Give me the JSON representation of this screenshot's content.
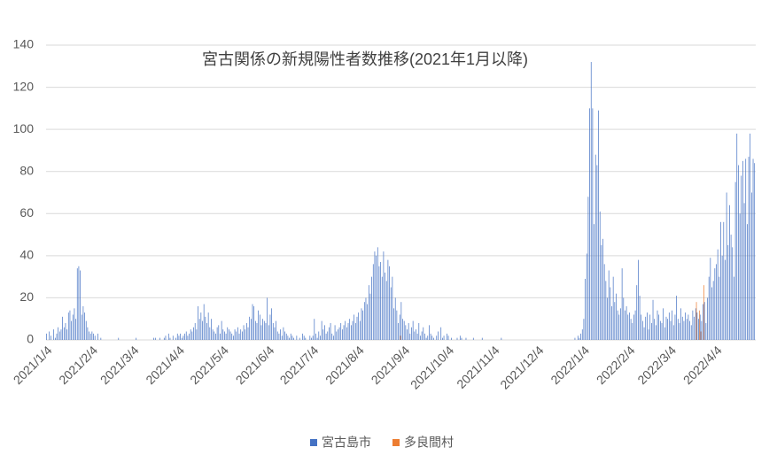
{
  "chart_data": {
    "type": "bar",
    "title": "宮古関係の新規陽性者数推移(2021年1月以降)",
    "ylim": [
      0,
      140
    ],
    "yticks": [
      0,
      20,
      40,
      60,
      80,
      100,
      120,
      140
    ],
    "grid": true,
    "legend": "bottom",
    "categories": [
      "2021/1/4",
      null,
      null,
      null,
      null,
      null,
      null,
      null,
      null,
      null,
      null,
      null,
      null,
      null,
      null,
      null,
      null,
      null,
      null,
      null,
      null,
      null,
      null,
      null,
      null,
      null,
      null,
      null,
      null,
      null,
      null,
      "2021/2/4",
      null,
      null,
      null,
      null,
      null,
      null,
      null,
      null,
      null,
      null,
      null,
      null,
      null,
      null,
      null,
      null,
      null,
      null,
      null,
      null,
      null,
      null,
      null,
      null,
      null,
      null,
      null,
      "2021/3/4",
      null,
      null,
      null,
      null,
      null,
      null,
      null,
      null,
      null,
      null,
      null,
      null,
      null,
      null,
      null,
      null,
      null,
      null,
      null,
      null,
      null,
      null,
      null,
      null,
      null,
      null,
      null,
      null,
      null,
      null,
      "2021/4/4",
      null,
      null,
      null,
      null,
      null,
      null,
      null,
      null,
      null,
      null,
      null,
      null,
      null,
      null,
      null,
      null,
      null,
      null,
      null,
      null,
      null,
      null,
      null,
      null,
      null,
      null,
      null,
      null,
      null,
      "2021/5/4",
      null,
      null,
      null,
      null,
      null,
      null,
      null,
      null,
      null,
      null,
      null,
      null,
      null,
      null,
      null,
      null,
      null,
      null,
      null,
      null,
      null,
      null,
      null,
      null,
      null,
      null,
      null,
      null,
      null,
      null,
      "2021/6/4",
      null,
      null,
      null,
      null,
      null,
      null,
      null,
      null,
      null,
      null,
      null,
      null,
      null,
      null,
      null,
      null,
      null,
      null,
      null,
      null,
      null,
      null,
      null,
      null,
      null,
      null,
      null,
      null,
      null,
      "2021/7/4",
      null,
      null,
      null,
      null,
      null,
      null,
      null,
      null,
      null,
      null,
      null,
      null,
      null,
      null,
      null,
      null,
      null,
      null,
      null,
      null,
      null,
      null,
      null,
      null,
      null,
      null,
      null,
      null,
      null,
      null,
      "2021/8/4",
      null,
      null,
      null,
      null,
      null,
      null,
      null,
      null,
      null,
      null,
      null,
      null,
      null,
      null,
      null,
      null,
      null,
      null,
      null,
      null,
      null,
      null,
      null,
      null,
      null,
      null,
      null,
      null,
      null,
      null,
      "2021/9/4",
      null,
      null,
      null,
      null,
      null,
      null,
      null,
      null,
      null,
      null,
      null,
      null,
      null,
      null,
      null,
      null,
      null,
      null,
      null,
      null,
      null,
      null,
      null,
      null,
      null,
      null,
      null,
      null,
      null,
      "2021/10/4",
      null,
      null,
      null,
      null,
      null,
      null,
      null,
      null,
      null,
      null,
      null,
      null,
      null,
      null,
      null,
      null,
      null,
      null,
      null,
      null,
      null,
      null,
      null,
      null,
      null,
      null,
      null,
      null,
      null,
      null,
      "2021/11/4",
      null,
      null,
      null,
      null,
      null,
      null,
      null,
      null,
      null,
      null,
      null,
      null,
      null,
      null,
      null,
      null,
      null,
      null,
      null,
      null,
      null,
      null,
      null,
      null,
      null,
      null,
      null,
      null,
      null,
      "2021/12/4",
      null,
      null,
      null,
      null,
      null,
      null,
      null,
      null,
      null,
      null,
      null,
      null,
      null,
      null,
      null,
      null,
      null,
      null,
      null,
      null,
      null,
      null,
      null,
      null,
      null,
      null,
      null,
      null,
      null,
      null,
      "2022/1/4",
      null,
      null,
      null,
      null,
      null,
      null,
      null,
      null,
      null,
      null,
      null,
      null,
      null,
      null,
      null,
      null,
      null,
      null,
      null,
      null,
      null,
      null,
      null,
      null,
      null,
      null,
      null,
      null,
      null,
      null,
      "2022/2/4",
      null,
      null,
      null,
      null,
      null,
      null,
      null,
      null,
      null,
      null,
      null,
      null,
      null,
      null,
      null,
      null,
      null,
      null,
      null,
      null,
      null,
      null,
      null,
      null,
      null,
      null,
      null,
      "2022/3/4",
      null,
      null,
      null,
      null,
      null,
      null,
      null,
      null,
      null,
      null,
      null,
      null,
      null,
      null,
      null,
      null,
      null,
      null,
      null,
      null,
      null,
      null,
      null,
      null,
      null,
      null,
      null,
      null,
      null,
      null,
      "2022/4/4",
      null,
      null,
      null,
      null,
      null,
      null,
      null,
      null,
      null,
      null,
      null,
      null,
      null,
      null,
      null,
      null,
      null,
      null,
      null,
      null,
      null,
      null,
      null,
      null,
      null,
      null
    ],
    "series": [
      {
        "name": "宮古島市",
        "color": "#4472c4",
        "values": [
          3,
          0,
          4,
          2,
          0,
          5,
          1,
          3,
          6,
          4,
          5,
          11,
          6,
          8,
          5,
          13,
          14,
          9,
          12,
          15,
          10,
          34,
          35,
          33,
          12,
          16,
          13,
          9,
          6,
          4,
          3,
          4,
          3,
          2,
          0,
          3,
          0,
          1,
          0,
          0,
          0,
          0,
          0,
          0,
          0,
          0,
          0,
          0,
          0,
          1,
          0,
          0,
          0,
          0,
          0,
          0,
          0,
          0,
          0,
          0,
          0,
          1,
          0,
          0,
          0,
          0,
          0,
          0,
          0,
          0,
          0,
          0,
          0,
          1,
          1,
          0,
          0,
          1,
          0,
          0,
          1,
          2,
          0,
          3,
          1,
          0,
          2,
          0,
          1,
          3,
          2,
          3,
          1,
          2,
          3,
          4,
          2,
          3,
          5,
          4,
          6,
          8,
          5,
          16,
          10,
          13,
          9,
          17,
          11,
          8,
          13,
          6,
          10,
          5,
          4,
          3,
          6,
          7,
          3,
          9,
          5,
          4,
          3,
          6,
          5,
          4,
          3,
          2,
          5,
          4,
          6,
          3,
          5,
          4,
          7,
          5,
          8,
          6,
          11,
          10,
          17,
          16,
          9,
          8,
          14,
          12,
          7,
          10,
          9,
          8,
          20,
          7,
          12,
          15,
          8,
          6,
          9,
          4,
          3,
          5,
          2,
          6,
          4,
          3,
          2,
          1,
          3,
          2,
          1,
          0,
          2,
          0,
          1,
          0,
          3,
          2,
          1,
          0,
          0,
          2,
          1,
          2,
          10,
          3,
          1,
          4,
          2,
          9,
          5,
          7,
          3,
          4,
          6,
          8,
          3,
          2,
          7,
          4,
          5,
          6,
          8,
          5,
          7,
          9,
          6,
          8,
          10,
          7,
          9,
          12,
          8,
          11,
          13,
          9,
          15,
          14,
          18,
          20,
          17,
          26,
          22,
          30,
          36,
          42,
          40,
          44,
          35,
          37,
          30,
          42,
          32,
          28,
          38,
          35,
          25,
          30,
          15,
          20,
          14,
          8,
          12,
          18,
          10,
          9,
          7,
          5,
          8,
          3,
          6,
          9,
          4,
          5,
          3,
          8,
          2,
          4,
          6,
          3,
          1,
          2,
          7,
          3,
          2,
          1,
          0,
          2,
          4,
          0,
          6,
          1,
          2,
          0,
          3,
          2,
          0,
          1,
          0,
          0,
          0,
          1,
          0,
          2,
          1,
          0,
          0,
          1,
          0,
          0,
          0,
          0,
          1,
          0,
          0,
          0,
          0,
          0,
          1,
          0,
          0,
          0,
          0,
          0,
          0,
          0,
          0,
          0,
          0,
          0,
          0,
          1,
          0,
          0,
          0,
          0,
          0,
          0,
          0,
          0,
          0,
          0,
          0,
          0,
          0,
          0,
          0,
          0,
          0,
          0,
          0,
          0,
          0,
          0,
          0,
          0,
          0,
          0,
          0,
          0,
          0,
          0,
          0,
          0,
          0,
          0,
          0,
          0,
          0,
          0,
          0,
          0,
          0,
          0,
          0,
          0,
          0,
          0,
          0,
          0,
          0,
          1,
          0,
          2,
          1,
          3,
          5,
          10,
          29,
          41,
          68,
          110,
          132,
          110,
          55,
          88,
          83,
          109,
          61,
          45,
          48,
          36,
          28,
          20,
          33,
          25,
          16,
          30,
          18,
          22,
          14,
          12,
          15,
          34,
          20,
          14,
          16,
          12,
          13,
          10,
          8,
          12,
          14,
          26,
          38,
          21,
          12,
          9,
          6,
          11,
          13,
          5,
          12,
          8,
          19,
          10,
          7,
          14,
          12,
          9,
          8,
          15,
          6,
          11,
          10,
          13,
          9,
          14,
          7,
          12,
          21,
          10,
          8,
          15,
          11,
          9,
          13,
          10,
          12,
          9,
          7,
          14,
          11,
          15,
          13,
          10,
          12,
          9,
          17,
          18,
          8,
          20,
          30,
          39,
          25,
          28,
          34,
          36,
          43,
          30,
          56,
          40,
          56,
          38,
          70,
          45,
          64,
          50,
          44,
          30,
          75,
          98,
          83,
          60,
          78,
          85,
          65,
          86,
          55,
          87,
          98,
          70,
          86,
          84
        ]
      },
      {
        "name": "多良間村",
        "color": "#ed7d31",
        "values": [
          0,
          0,
          0,
          0,
          0,
          0,
          0,
          0,
          0,
          0,
          0,
          0,
          0,
          0,
          0,
          0,
          0,
          0,
          0,
          0,
          0,
          0,
          0,
          0,
          0,
          0,
          0,
          0,
          0,
          0,
          0,
          0,
          0,
          0,
          0,
          0,
          0,
          0,
          0,
          0,
          0,
          0,
          0,
          0,
          0,
          0,
          0,
          0,
          0,
          0,
          0,
          0,
          0,
          0,
          0,
          0,
          0,
          0,
          0,
          0,
          0,
          0,
          0,
          0,
          0,
          0,
          0,
          0,
          0,
          0,
          0,
          0,
          0,
          0,
          0,
          0,
          0,
          0,
          0,
          0,
          0,
          0,
          0,
          0,
          0,
          0,
          0,
          0,
          0,
          0,
          0,
          0,
          0,
          0,
          0,
          0,
          0,
          0,
          0,
          0,
          0,
          0,
          0,
          0,
          0,
          0,
          0,
          0,
          0,
          0,
          0,
          0,
          0,
          0,
          0,
          0,
          0,
          0,
          0,
          0,
          0,
          0,
          0,
          0,
          0,
          0,
          0,
          0,
          0,
          0,
          0,
          0,
          0,
          0,
          0,
          0,
          0,
          0,
          0,
          0,
          0,
          0,
          0,
          0,
          0,
          0,
          0,
          0,
          0,
          0,
          0,
          0,
          0,
          0,
          0,
          0,
          0,
          0,
          0,
          0,
          0,
          0,
          0,
          0,
          0,
          0,
          0,
          0,
          0,
          0,
          0,
          0,
          0,
          0,
          0,
          0,
          0,
          0,
          0,
          0,
          0,
          0,
          0,
          0,
          0,
          0,
          0,
          0,
          0,
          0,
          0,
          0,
          0,
          0,
          0,
          0,
          0,
          0,
          0,
          0,
          0,
          0,
          0,
          0,
          0,
          0,
          0,
          0,
          0,
          0,
          0,
          0,
          0,
          0,
          0,
          0,
          0,
          0,
          0,
          0,
          0,
          0,
          0,
          0,
          0,
          0,
          0,
          0,
          0,
          0,
          0,
          0,
          0,
          0,
          0,
          0,
          0,
          0,
          0,
          0,
          2,
          0,
          0,
          0,
          0,
          0,
          0,
          0,
          0,
          0,
          0,
          0,
          0,
          0,
          0,
          0,
          0,
          0,
          0,
          0,
          0,
          0,
          0,
          0,
          0,
          0,
          0,
          0,
          0,
          0,
          0,
          0,
          0,
          0,
          0,
          0,
          0,
          0,
          0,
          0,
          0,
          0,
          0,
          0,
          0,
          0,
          0,
          0,
          0,
          0,
          0,
          0,
          0,
          0,
          0,
          0,
          0,
          0,
          0,
          0,
          0,
          0,
          0,
          0,
          0,
          0,
          0,
          0,
          0,
          0,
          0,
          0,
          0,
          0,
          0,
          0,
          0,
          0,
          0,
          0,
          0,
          0,
          0,
          0,
          0,
          0,
          0,
          0,
          0,
          0,
          0,
          0,
          0,
          0,
          0,
          0,
          0,
          0,
          0,
          0,
          0,
          0,
          0,
          0,
          0,
          0,
          0,
          0,
          0,
          0,
          0,
          0,
          0,
          0,
          0,
          0,
          0,
          0,
          0,
          0,
          0,
          0,
          0,
          0,
          0,
          0,
          0,
          0,
          0,
          0,
          0,
          0,
          0,
          0,
          0,
          0,
          0,
          0,
          0,
          0,
          0,
          0,
          0,
          0,
          0,
          0,
          0,
          0,
          0,
          0,
          0,
          0,
          0,
          0,
          0,
          0,
          0,
          0,
          0,
          0,
          0,
          0,
          0,
          0,
          0,
          0,
          0,
          0,
          0,
          0,
          0,
          0,
          0,
          0,
          0,
          0,
          0,
          0,
          0,
          0,
          0,
          0,
          0,
          0,
          0,
          0,
          0,
          0,
          0,
          0,
          0,
          0,
          0,
          0,
          0,
          0,
          0,
          0,
          0,
          0,
          0,
          18,
          0,
          14,
          4,
          0,
          26,
          0,
          0,
          0,
          0,
          0,
          0,
          0,
          0,
          0,
          0,
          0,
          0,
          0,
          0,
          0,
          0,
          0,
          0,
          0,
          0,
          0,
          0,
          0,
          0,
          0,
          0,
          0,
          0,
          0,
          0,
          0,
          0,
          0,
          0,
          0
        ]
      }
    ]
  }
}
